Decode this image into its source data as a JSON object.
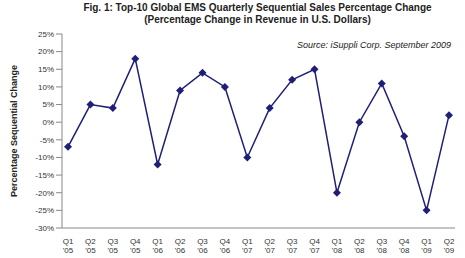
{
  "chart_data": {
    "type": "line",
    "title": "Fig. 1: Top-10 Global EMS Quarterly Sequential Sales Percentage Change",
    "subtitle": "(Percentage Change in Revenue in U.S. Dollars)",
    "annotation": "Source: iSuppli Corp. September 2009",
    "y_label": "Percentage Sequential Change",
    "categories": [
      "Q1 '05",
      "Q2 '05",
      "Q3 '05",
      "Q4 '05",
      "Q1 '06",
      "Q2 '06",
      "Q3 '06",
      "Q4 '06",
      "Q1 '07",
      "Q2 '07",
      "Q3 '07",
      "Q4 '07",
      "Q1 '08",
      "Q2 '08",
      "Q3 '08",
      "Q4 '08",
      "Q1 '09",
      "Q2 '09"
    ],
    "values": [
      -7,
      5,
      4,
      18,
      -12,
      9,
      14,
      10,
      -10,
      4,
      12,
      15,
      -20,
      0,
      11,
      -4,
      -25,
      2
    ],
    "color": "#1f1f78",
    "marker": "diamond",
    "ylim": [
      -30,
      25
    ],
    "yticks": [
      {
        "value": -30,
        "label": "-30%"
      },
      {
        "value": -25,
        "label": "-25%"
      },
      {
        "value": -20,
        "label": "-20%"
      },
      {
        "value": -15,
        "label": "-15%"
      },
      {
        "value": -10,
        "label": "-10%"
      },
      {
        "value": -5,
        "label": "-5%"
      },
      {
        "value": 0,
        "label": "0%"
      },
      {
        "value": 5,
        "label": "5%"
      },
      {
        "value": 10,
        "label": "10%"
      },
      {
        "value": 15,
        "label": "15%"
      },
      {
        "value": 20,
        "label": "20%"
      },
      {
        "value": 25,
        "label": "25%"
      }
    ],
    "grid": false
  }
}
